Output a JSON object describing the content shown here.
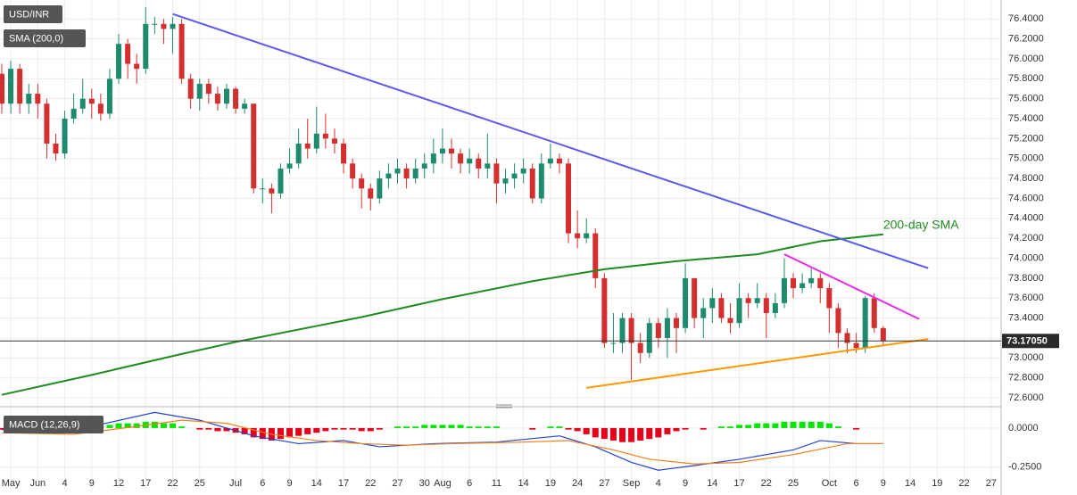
{
  "chart_data": [
    {
      "type": "candlestick",
      "title": "USD/INR",
      "categories": [
        null,
        "May",
        null,
        null,
        "Jun",
        null,
        null,
        "4",
        null,
        null,
        "9",
        null,
        null,
        "12",
        null,
        null,
        "17",
        null,
        null,
        "22",
        null,
        null,
        "25",
        null,
        null,
        null,
        "Jul",
        null,
        null,
        "6",
        null,
        null,
        "9",
        null,
        null,
        "14",
        null,
        null,
        "17",
        null,
        null,
        "22",
        null,
        null,
        "27",
        null,
        null,
        "30",
        null,
        "Aug",
        null,
        null,
        "6",
        null,
        null,
        "11",
        null,
        null,
        "14",
        null,
        null,
        "19",
        null,
        null,
        "24",
        null,
        null,
        "27",
        null,
        null,
        "Sep",
        null,
        null,
        "4",
        null,
        null,
        "9",
        null,
        null,
        "14",
        null,
        null,
        "17",
        null,
        null,
        "22",
        null,
        null,
        "25",
        null,
        null,
        null,
        "Oct",
        null,
        null,
        "6",
        null,
        null,
        "9",
        null,
        null,
        "14",
        null,
        null,
        "19",
        null,
        null,
        "22",
        null,
        null,
        "27",
        null
      ],
      "open": [
        75.85,
        75.55,
        75.9,
        75.55,
        75.65,
        75.55,
        75.15,
        75.05,
        75.4,
        75.5,
        75.6,
        75.55,
        75.45,
        75.8,
        76.15,
        75.95,
        75.9,
        76.35,
        76.35,
        76.3,
        76.35,
        75.8,
        75.6,
        75.75,
        75.65,
        75.55,
        75.7,
        75.5,
        75.55,
        74.7,
        74.7,
        74.65,
        74.9,
        74.95,
        75.15,
        75.1,
        75.25,
        75.2,
        75.15,
        74.95,
        74.8,
        74.7,
        74.6,
        74.8,
        74.85,
        74.9,
        74.8,
        74.9,
        74.95,
        75.05,
        75.1,
        75.05,
        74.95,
        75.0,
        74.9,
        74.95,
        74.75,
        74.8,
        74.85,
        74.9,
        74.6,
        74.95,
        75.0,
        74.95,
        74.25,
        74.2,
        74.25,
        73.8,
        73.15,
        73.15,
        73.4,
        73.15,
        73.05,
        73.35,
        73.2,
        73.4,
        73.3,
        73.8,
        73.4,
        73.5,
        73.6,
        73.4,
        73.35,
        73.6,
        73.55,
        73.6,
        73.45,
        73.55,
        73.8,
        73.7,
        73.75,
        73.8,
        73.7,
        73.5,
        73.25,
        73.15,
        73.1,
        73.6,
        73.3,
        null,
        null,
        null,
        null,
        null,
        null,
        null,
        null,
        null,
        null,
        null,
        null,
        null
      ],
      "high": [
        75.95,
        75.98,
        75.95,
        75.75,
        75.75,
        75.6,
        75.25,
        75.48,
        75.65,
        75.8,
        75.7,
        75.65,
        75.9,
        76.25,
        76.2,
        76.05,
        76.52,
        76.42,
        76.4,
        76.42,
        76.4,
        75.85,
        75.8,
        75.8,
        75.72,
        75.75,
        75.72,
        75.6,
        75.55,
        74.8,
        74.75,
        74.95,
        75.1,
        75.3,
        75.4,
        75.52,
        75.45,
        75.3,
        75.2,
        75.0,
        74.85,
        74.75,
        74.88,
        74.95,
        75.0,
        74.95,
        75.0,
        75.05,
        75.2,
        75.3,
        75.2,
        75.1,
        75.1,
        75.05,
        75.25,
        75.0,
        74.9,
        74.95,
        75.0,
        74.95,
        75.05,
        75.15,
        75.05,
        75.0,
        74.48,
        74.4,
        74.3,
        73.85,
        73.45,
        73.45,
        73.45,
        73.25,
        73.4,
        73.4,
        73.5,
        73.45,
        73.95,
        73.8,
        73.6,
        73.7,
        73.65,
        73.55,
        73.75,
        73.65,
        73.75,
        73.65,
        73.65,
        74.0,
        73.85,
        73.85,
        73.9,
        73.85,
        73.75,
        73.55,
        73.3,
        73.25,
        73.62,
        73.65,
        73.32,
        null,
        null,
        null,
        null,
        null,
        null,
        null,
        null,
        null,
        null,
        null,
        null,
        null
      ],
      "low": [
        75.45,
        75.45,
        75.45,
        75.45,
        75.4,
        75.0,
        74.98,
        75.0,
        75.35,
        75.45,
        75.4,
        75.38,
        75.4,
        75.75,
        75.8,
        75.75,
        75.85,
        76.25,
        76.15,
        76.05,
        75.75,
        75.5,
        75.48,
        75.55,
        75.48,
        75.5,
        75.45,
        75.45,
        74.65,
        74.55,
        74.45,
        74.6,
        74.85,
        74.9,
        75.0,
        75.05,
        75.1,
        75.05,
        74.85,
        74.7,
        74.5,
        74.48,
        74.55,
        74.7,
        74.75,
        74.7,
        74.75,
        74.8,
        74.85,
        74.95,
        74.9,
        74.85,
        74.85,
        74.8,
        74.8,
        74.55,
        74.65,
        74.7,
        74.75,
        74.55,
        74.55,
        74.9,
        74.85,
        74.15,
        74.1,
        74.15,
        73.7,
        73.1,
        73.05,
        73.05,
        72.78,
        72.95,
        73.0,
        73.1,
        73.0,
        73.05,
        73.25,
        73.3,
        73.2,
        73.35,
        73.35,
        73.25,
        73.3,
        73.4,
        73.5,
        73.2,
        73.4,
        73.5,
        73.6,
        73.65,
        73.7,
        73.55,
        73.25,
        73.1,
        73.05,
        73.05,
        73.05,
        73.25,
        73.12,
        null,
        null,
        null,
        null,
        null,
        null,
        null,
        null,
        null,
        null,
        null,
        null,
        null
      ],
      "close": [
        75.55,
        75.9,
        75.55,
        75.65,
        75.55,
        75.15,
        75.05,
        75.4,
        75.5,
        75.6,
        75.55,
        75.45,
        75.8,
        76.15,
        75.95,
        75.9,
        76.35,
        76.35,
        76.3,
        76.35,
        75.8,
        75.6,
        75.75,
        75.65,
        75.55,
        75.7,
        75.5,
        75.55,
        74.7,
        74.7,
        74.65,
        74.9,
        74.95,
        75.15,
        75.1,
        75.25,
        75.2,
        75.15,
        74.95,
        74.8,
        74.7,
        74.6,
        74.8,
        74.85,
        74.9,
        74.8,
        74.9,
        74.95,
        75.05,
        75.1,
        75.05,
        74.95,
        75.0,
        74.9,
        74.95,
        74.75,
        74.8,
        74.85,
        74.9,
        74.6,
        74.95,
        75.0,
        74.95,
        74.25,
        74.2,
        74.25,
        73.8,
        73.15,
        73.15,
        73.4,
        73.15,
        73.05,
        73.35,
        73.2,
        73.4,
        73.3,
        73.8,
        73.4,
        73.5,
        73.6,
        73.4,
        73.35,
        73.6,
        73.55,
        73.6,
        73.45,
        73.55,
        73.8,
        73.7,
        73.75,
        73.8,
        73.7,
        73.5,
        73.25,
        73.15,
        73.1,
        73.6,
        73.3,
        73.1705,
        null,
        null,
        null,
        null,
        null,
        null,
        null,
        null,
        null,
        null,
        null,
        null,
        null
      ],
      "up_color": "#1e8a6e",
      "down_color": "#d32f2f",
      "ylim": [
        72.52,
        76.59
      ],
      "yticks": [
        {
          "value": 72.6,
          "label": "72.6000"
        },
        {
          "value": 72.8,
          "label": "72.8000"
        },
        {
          "value": 73.0,
          "label": "73.0000"
        },
        {
          "value": 73.2,
          "label": "73.2000"
        },
        {
          "value": 73.4,
          "label": "73.4000"
        },
        {
          "value": 73.6,
          "label": "73.6000"
        },
        {
          "value": 73.8,
          "label": "73.8000"
        },
        {
          "value": 74.0,
          "label": "74.0000"
        },
        {
          "value": 74.2,
          "label": "74.2000"
        },
        {
          "value": 74.4,
          "label": "74.4000"
        },
        {
          "value": 74.6,
          "label": "74.6000"
        },
        {
          "value": 74.8,
          "label": "74.8000"
        },
        {
          "value": 75.0,
          "label": "75.0000"
        },
        {
          "value": 75.2,
          "label": "75.2000"
        },
        {
          "value": 75.4,
          "label": "75.4000"
        },
        {
          "value": 75.6,
          "label": "75.6000"
        },
        {
          "value": 75.8,
          "label": "75.8000"
        },
        {
          "value": 76.0,
          "label": "76.0000"
        },
        {
          "value": 76.2,
          "label": "76.2000"
        },
        {
          "value": 76.4,
          "label": "76.4000"
        }
      ],
      "grid": true,
      "current_price": {
        "value": 73.1705,
        "label": "73.17050"
      },
      "sma": {
        "name": "SMA (200,0)",
        "color": "#1e8c1e",
        "x": [
          0,
          10,
          20,
          26,
          40,
          49,
          59,
          67,
          75,
          84,
          91,
          98
        ],
        "values": [
          72.63,
          72.83,
          73.04,
          73.16,
          73.41,
          73.59,
          73.77,
          73.89,
          73.97,
          74.04,
          74.17,
          74.24
        ]
      },
      "annotation": "200-day SMA",
      "trendlines": [
        {
          "color": "#5b5bf0",
          "x": [
            19,
            103
          ],
          "values": [
            76.45,
            73.9
          ]
        },
        {
          "color": "#e62ee6",
          "x": [
            87,
            102
          ],
          "values": [
            74.04,
            73.39
          ]
        },
        {
          "color": "#ff9900",
          "x": [
            65,
            103
          ],
          "values": [
            72.7,
            73.19
          ]
        }
      ]
    },
    {
      "type": "macd",
      "title": "MACD (12,26,9)",
      "histogram": [
        -0.01,
        -0.01,
        -0.01,
        -0.01,
        -0.02,
        -0.02,
        -0.02,
        -0.01,
        -0.01,
        0.0,
        0.01,
        0.01,
        0.02,
        0.03,
        0.03,
        0.03,
        0.04,
        0.04,
        0.03,
        0.03,
        0.01,
        0.0,
        -0.01,
        -0.01,
        -0.02,
        -0.02,
        -0.03,
        -0.04,
        -0.06,
        -0.07,
        -0.08,
        -0.07,
        -0.06,
        -0.05,
        -0.04,
        -0.03,
        -0.02,
        -0.01,
        -0.01,
        -0.01,
        -0.02,
        -0.02,
        -0.01,
        0.0,
        0.01,
        0.01,
        0.01,
        0.02,
        0.02,
        0.02,
        0.02,
        0.02,
        0.01,
        0.01,
        0.01,
        0.01,
        0.0,
        0.0,
        0.0,
        -0.01,
        0.0,
        0.01,
        0.01,
        -0.01,
        -0.02,
        -0.04,
        -0.06,
        -0.07,
        -0.08,
        -0.09,
        -0.09,
        -0.08,
        -0.07,
        -0.06,
        -0.04,
        -0.02,
        -0.01,
        0.0,
        -0.01,
        0.0,
        0.01,
        0.01,
        0.02,
        0.02,
        0.03,
        0.03,
        0.03,
        0.04,
        0.04,
        0.04,
        0.04,
        0.04,
        0.03,
        0.01,
        0.0,
        -0.01,
        0.0,
        0.0,
        0.0,
        null,
        null,
        null,
        null,
        null,
        null,
        null,
        null,
        null,
        null,
        null,
        null,
        null
      ],
      "hist_up_color": "#00e600",
      "hist_down_color": "#e6001a",
      "macd": {
        "color": "#2244cc",
        "x": [
          0,
          5,
          10,
          17,
          22,
          28,
          33,
          38,
          42,
          48,
          55,
          62,
          66,
          70,
          73,
          77,
          82,
          88,
          91,
          95,
          98
        ],
        "values": [
          -0.01,
          -0.02,
          0.01,
          0.1,
          0.05,
          -0.05,
          -0.1,
          -0.08,
          -0.12,
          -0.1,
          -0.09,
          -0.05,
          -0.12,
          -0.22,
          -0.27,
          -0.24,
          -0.2,
          -0.14,
          -0.08,
          -0.1,
          -0.1
        ]
      },
      "signal": {
        "color": "#f08020",
        "x": [
          0,
          8,
          15,
          20,
          25,
          30,
          35,
          40,
          45,
          50,
          58,
          63,
          68,
          72,
          77,
          82,
          88,
          94,
          98
        ],
        "values": [
          -0.03,
          -0.04,
          0.01,
          0.05,
          0.03,
          -0.04,
          -0.08,
          -0.1,
          -0.11,
          -0.1,
          -0.09,
          -0.08,
          -0.14,
          -0.2,
          -0.23,
          -0.22,
          -0.17,
          -0.1,
          -0.1
        ]
      },
      "ylim": [
        -0.32,
        0.125
      ],
      "yticks": [
        {
          "value": 0,
          "label": "0.0000"
        },
        {
          "value": -0.25,
          "label": "-0.2500"
        }
      ]
    }
  ]
}
